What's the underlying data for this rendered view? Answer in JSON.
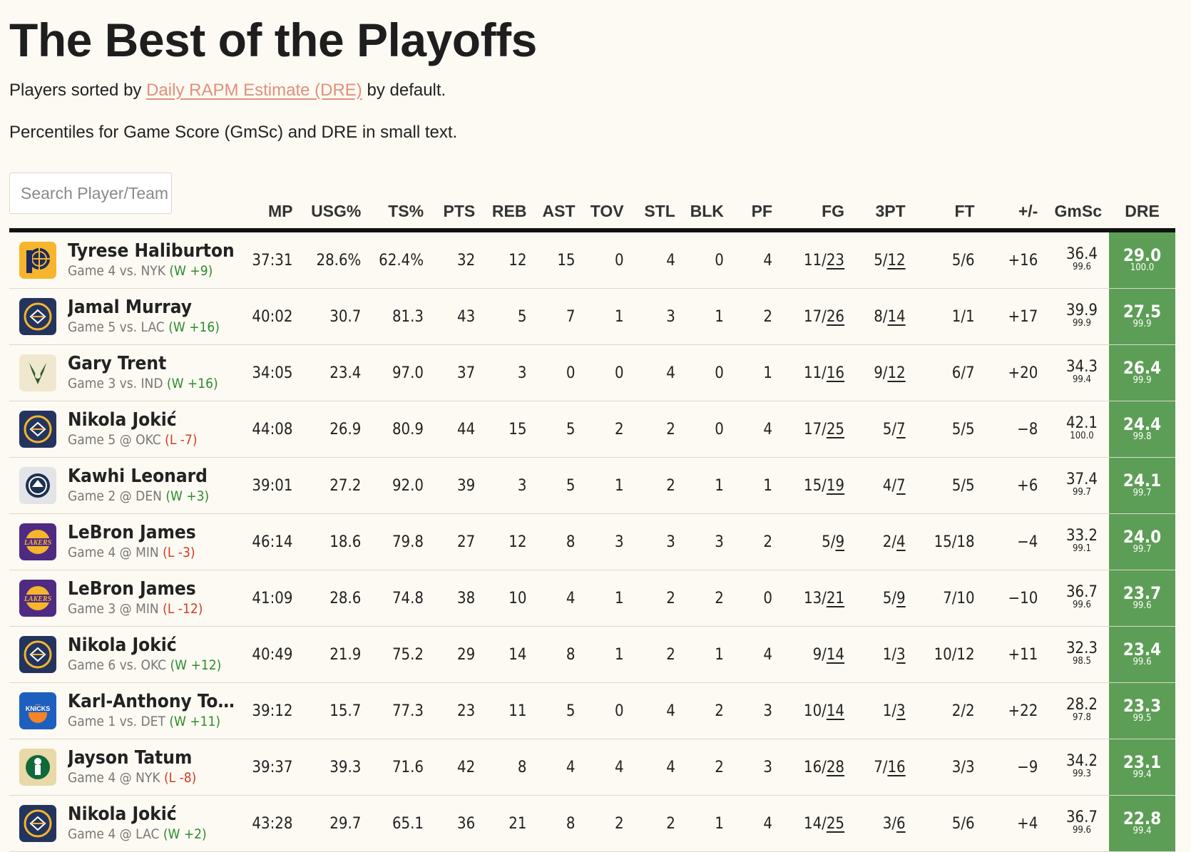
{
  "title": "The Best of the Playoffs",
  "subtitle": {
    "prefix": "Players sorted by ",
    "link": "Daily RAPM Estimate (DRE)",
    "suffix": " by default."
  },
  "note": "Percentiles for Game Score (GmSc) and DRE in small text.",
  "search": {
    "placeholder": "Search Player/Team",
    "value": ""
  },
  "columns": [
    "MP",
    "USG%",
    "TS%",
    "PTS",
    "REB",
    "AST",
    "TOV",
    "STL",
    "BLK",
    "PF",
    "FG",
    "3PT",
    "FT",
    "+/-",
    "GmSc",
    "DRE"
  ],
  "colors": {
    "dre_cell": "#5c9e55",
    "win": "#2e8b2e",
    "loss": "#d43a2a",
    "link": "#e0907c"
  },
  "rows": [
    {
      "name": "Tyrese Haliburton",
      "team_logo": "pacers-logo",
      "game": "Game 4 vs. NYK",
      "result": "(W +9)",
      "win": true,
      "mp": "37:31",
      "usg": "28.6%",
      "ts": "62.4%",
      "pts": "32",
      "reb": "12",
      "ast": "15",
      "tov": "0",
      "stl": "4",
      "blk": "0",
      "pf": "4",
      "fg_m": "11",
      "fg_a": "23",
      "tp_m": "5",
      "tp_a": "12",
      "ft": "5/6",
      "pm": "+16",
      "gmsc": "36.4",
      "gmsc_pct": "99.6",
      "dre": "29.0",
      "dre_pct": "100.0"
    },
    {
      "name": "Jamal Murray",
      "team_logo": "nuggets-logo",
      "game": "Game 5 vs. LAC",
      "result": "(W +16)",
      "win": true,
      "mp": "40:02",
      "usg": "30.7",
      "ts": "81.3",
      "pts": "43",
      "reb": "5",
      "ast": "7",
      "tov": "1",
      "stl": "3",
      "blk": "1",
      "pf": "2",
      "fg_m": "17",
      "fg_a": "26",
      "tp_m": "8",
      "tp_a": "14",
      "ft": "1/1",
      "pm": "+17",
      "gmsc": "39.9",
      "gmsc_pct": "99.9",
      "dre": "27.5",
      "dre_pct": "99.9"
    },
    {
      "name": "Gary Trent",
      "team_logo": "bucks-logo",
      "game": "Game 3 vs. IND",
      "result": "(W +16)",
      "win": true,
      "mp": "34:05",
      "usg": "23.4",
      "ts": "97.0",
      "pts": "37",
      "reb": "3",
      "ast": "0",
      "tov": "0",
      "stl": "4",
      "blk": "0",
      "pf": "1",
      "fg_m": "11",
      "fg_a": "16",
      "tp_m": "9",
      "tp_a": "12",
      "ft": "6/7",
      "pm": "+20",
      "gmsc": "34.3",
      "gmsc_pct": "99.4",
      "dre": "26.4",
      "dre_pct": "99.9"
    },
    {
      "name": "Nikola Jokić",
      "team_logo": "nuggets-logo",
      "game": "Game 5 @ OKC",
      "result": "(L -7)",
      "win": false,
      "mp": "44:08",
      "usg": "26.9",
      "ts": "80.9",
      "pts": "44",
      "reb": "15",
      "ast": "5",
      "tov": "2",
      "stl": "2",
      "blk": "0",
      "pf": "4",
      "fg_m": "17",
      "fg_a": "25",
      "tp_m": "5",
      "tp_a": "7",
      "ft": "5/5",
      "pm": "−8",
      "gmsc": "42.1",
      "gmsc_pct": "100.0",
      "dre": "24.4",
      "dre_pct": "99.8"
    },
    {
      "name": "Kawhi Leonard",
      "team_logo": "clippers-logo",
      "game": "Game 2 @ DEN",
      "result": "(W +3)",
      "win": true,
      "mp": "39:01",
      "usg": "27.2",
      "ts": "92.0",
      "pts": "39",
      "reb": "3",
      "ast": "5",
      "tov": "1",
      "stl": "2",
      "blk": "1",
      "pf": "1",
      "fg_m": "15",
      "fg_a": "19",
      "tp_m": "4",
      "tp_a": "7",
      "ft": "5/5",
      "pm": "+6",
      "gmsc": "37.4",
      "gmsc_pct": "99.7",
      "dre": "24.1",
      "dre_pct": "99.7"
    },
    {
      "name": "LeBron James",
      "team_logo": "lakers-logo",
      "game": "Game 4 @ MIN",
      "result": "(L -3)",
      "win": false,
      "mp": "46:14",
      "usg": "18.6",
      "ts": "79.8",
      "pts": "27",
      "reb": "12",
      "ast": "8",
      "tov": "3",
      "stl": "3",
      "blk": "3",
      "pf": "2",
      "fg_m": "5",
      "fg_a": "9",
      "tp_m": "2",
      "tp_a": "4",
      "ft": "15/18",
      "pm": "−4",
      "gmsc": "33.2",
      "gmsc_pct": "99.1",
      "dre": "24.0",
      "dre_pct": "99.7"
    },
    {
      "name": "LeBron James",
      "team_logo": "lakers-logo",
      "game": "Game 3 @ MIN",
      "result": "(L -12)",
      "win": false,
      "mp": "41:09",
      "usg": "28.6",
      "ts": "74.8",
      "pts": "38",
      "reb": "10",
      "ast": "4",
      "tov": "1",
      "stl": "2",
      "blk": "2",
      "pf": "0",
      "fg_m": "13",
      "fg_a": "21",
      "tp_m": "5",
      "tp_a": "9",
      "ft": "7/10",
      "pm": "−10",
      "gmsc": "36.7",
      "gmsc_pct": "99.6",
      "dre": "23.7",
      "dre_pct": "99.6"
    },
    {
      "name": "Nikola Jokić",
      "team_logo": "nuggets-logo",
      "game": "Game 6 vs. OKC",
      "result": "(W +12)",
      "win": true,
      "mp": "40:49",
      "usg": "21.9",
      "ts": "75.2",
      "pts": "29",
      "reb": "14",
      "ast": "8",
      "tov": "1",
      "stl": "2",
      "blk": "1",
      "pf": "4",
      "fg_m": "9",
      "fg_a": "14",
      "tp_m": "1",
      "tp_a": "3",
      "ft": "10/12",
      "pm": "+11",
      "gmsc": "32.3",
      "gmsc_pct": "98.5",
      "dre": "23.4",
      "dre_pct": "99.6"
    },
    {
      "name": "Karl-Anthony Town....",
      "team_logo": "knicks-logo",
      "game": "Game 1 vs. DET",
      "result": "(W +11)",
      "win": true,
      "mp": "39:12",
      "usg": "15.7",
      "ts": "77.3",
      "pts": "23",
      "reb": "11",
      "ast": "5",
      "tov": "0",
      "stl": "4",
      "blk": "2",
      "pf": "3",
      "fg_m": "10",
      "fg_a": "14",
      "tp_m": "1",
      "tp_a": "3",
      "ft": "2/2",
      "pm": "+22",
      "gmsc": "28.2",
      "gmsc_pct": "97.8",
      "dre": "23.3",
      "dre_pct": "99.5"
    },
    {
      "name": "Jayson Tatum",
      "team_logo": "celtics-logo",
      "game": "Game 4 @ NYK",
      "result": "(L -8)",
      "win": false,
      "mp": "39:37",
      "usg": "39.3",
      "ts": "71.6",
      "pts": "42",
      "reb": "8",
      "ast": "4",
      "tov": "4",
      "stl": "4",
      "blk": "2",
      "pf": "3",
      "fg_m": "16",
      "fg_a": "28",
      "tp_m": "7",
      "tp_a": "16",
      "ft": "3/3",
      "pm": "−9",
      "gmsc": "34.2",
      "gmsc_pct": "99.3",
      "dre": "23.1",
      "dre_pct": "99.4"
    },
    {
      "name": "Nikola Jokić",
      "team_logo": "nuggets-logo",
      "game": "Game 4 @ LAC",
      "result": "(W +2)",
      "win": true,
      "mp": "43:28",
      "usg": "29.7",
      "ts": "65.1",
      "pts": "36",
      "reb": "21",
      "ast": "8",
      "tov": "2",
      "stl": "2",
      "blk": "1",
      "pf": "4",
      "fg_m": "14",
      "fg_a": "25",
      "tp_m": "3",
      "tp_a": "6",
      "ft": "5/6",
      "pm": "+4",
      "gmsc": "36.7",
      "gmsc_pct": "99.6",
      "dre": "22.8",
      "dre_pct": "99.4"
    }
  ]
}
